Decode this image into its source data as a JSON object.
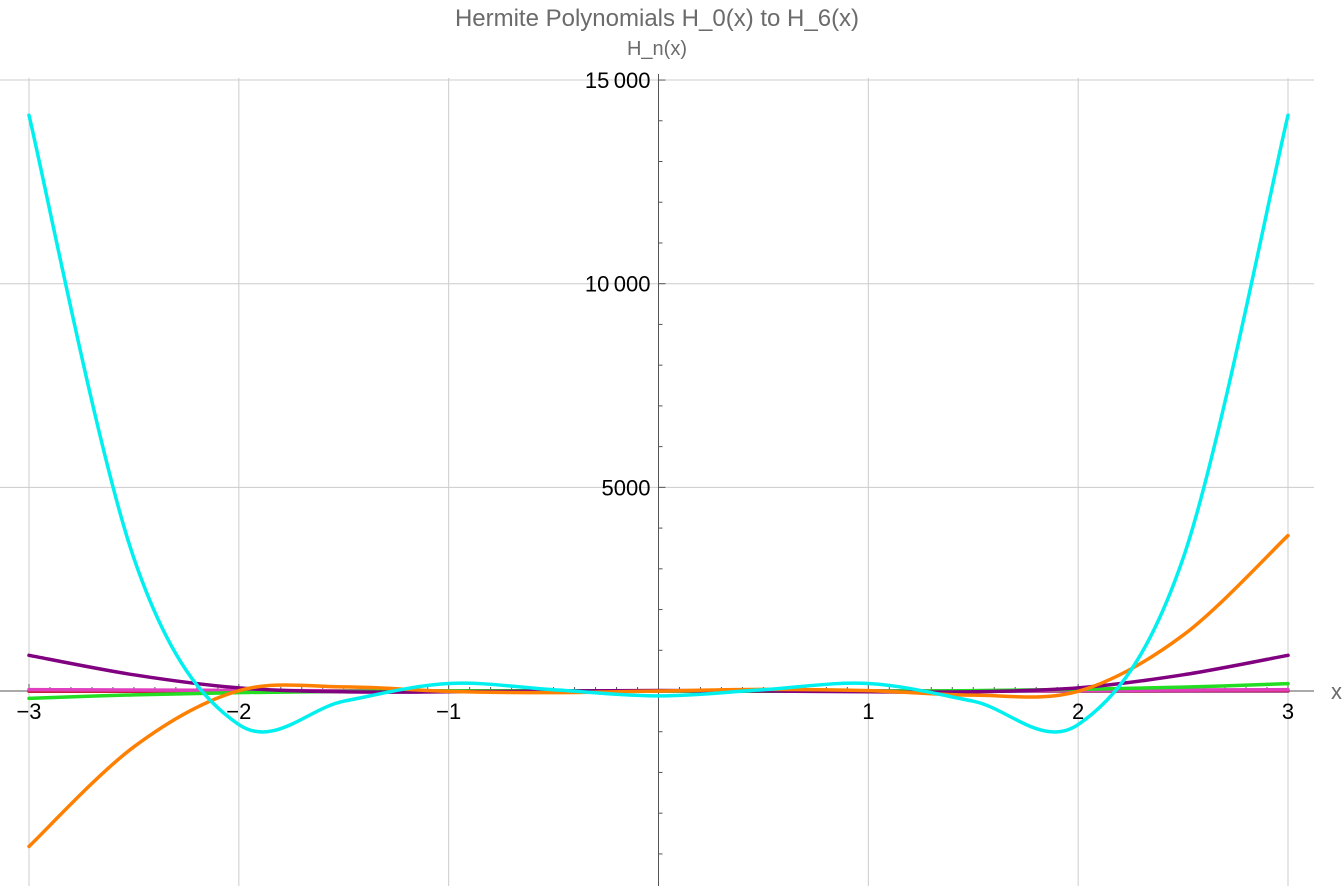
{
  "chart_data": {
    "type": "line",
    "title": "Hermite Polynomials H_0(x) to H_6(x)",
    "xlabel": "x",
    "ylabel": "H_n(x)",
    "xlim": [
      -3,
      3
    ],
    "ylim": [
      -4800,
      15000
    ],
    "grid": true,
    "x_ticks": [
      -3,
      -2,
      -1,
      1,
      2,
      3
    ],
    "x_tick_labels": [
      "−3",
      "−2",
      "−1",
      "1",
      "2",
      "3"
    ],
    "y_ticks": [
      5000,
      10000,
      15000
    ],
    "y_tick_labels": [
      "5000",
      "10 000",
      "15 000"
    ],
    "x": [
      -3,
      -2.5,
      -2,
      -1.5,
      -1,
      -0.5,
      0,
      0.5,
      1,
      1.5,
      2,
      2.5,
      3
    ],
    "series": [
      {
        "color": "#1f3fd0",
        "values": [
          1,
          1,
          1,
          1,
          1,
          1,
          1,
          1,
          1,
          1,
          1,
          1,
          1
        ]
      },
      {
        "color": "#c81e3c",
        "values": [
          -6,
          -5,
          -4,
          -3,
          -2,
          -1,
          0,
          1,
          2,
          3,
          4,
          5,
          6
        ]
      },
      {
        "color": "#e040c0",
        "values": [
          34,
          23,
          14,
          7,
          2,
          -1,
          -2,
          -1,
          2,
          7,
          14,
          23,
          34
        ]
      },
      {
        "color": "#22dd22",
        "values": [
          -180,
          -95,
          -40,
          -9,
          4,
          5,
          0,
          -5,
          -4,
          9,
          40,
          95,
          180
        ]
      },
      {
        "color": "#800080",
        "values": [
          876,
          397,
          76,
          -20,
          -20,
          1,
          12,
          1,
          -20,
          -20,
          76,
          397,
          876
        ]
      },
      {
        "color": "#ff8000",
        "values": [
          -3816,
          -1370,
          8,
          102,
          -8,
          -41,
          0,
          41,
          8,
          -102,
          -8,
          1370,
          3816
        ]
      },
      {
        "color": "#00f0f0",
        "values": [
          14136,
          3257,
          -824,
          -251,
          184,
          31,
          -120,
          31,
          184,
          -251,
          -824,
          3257,
          14136
        ]
      }
    ]
  }
}
